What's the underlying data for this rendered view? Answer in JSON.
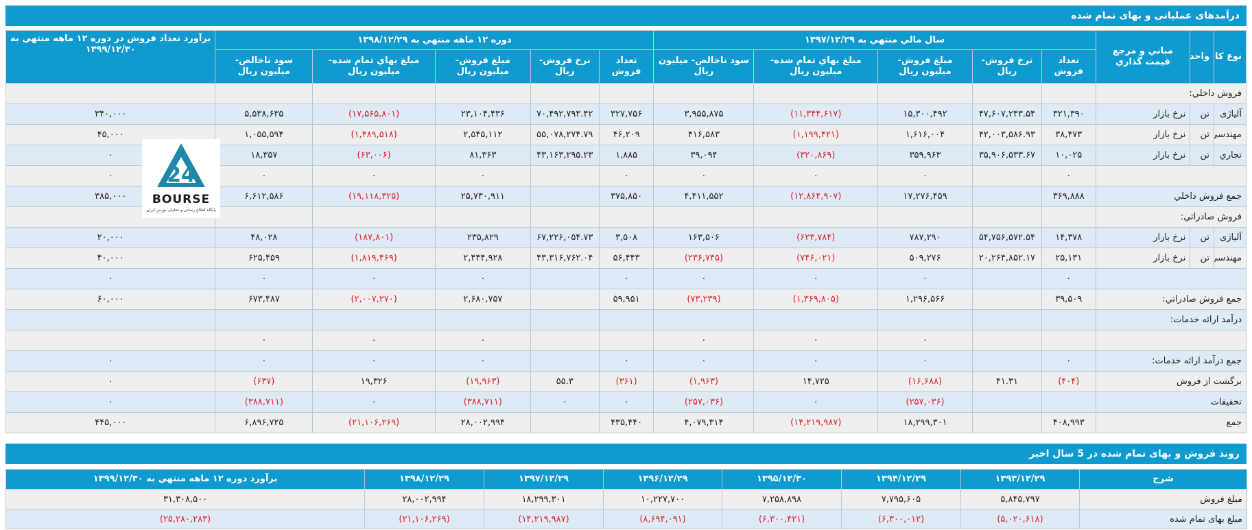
{
  "section1": {
    "title": "درآمدهای عملیاتی و بهای تمام شده"
  },
  "main_headers": {
    "item_type": "نوع کالا",
    "unit": "واحد",
    "pricing_basis": "مباني و مرجع قيمت گذاري",
    "fy1397": "سال مالي منتهي به ۱۳۹۷/۱۲/۲۹",
    "fy1398": "دوره ۱۲ ماهه منتهي به ۱۳۹۸/۱۲/۲۹",
    "estimate": "برآورد تعداد فروش در دوره ۱۲ ماهه منتهي به ۱۳۹۹/۱۲/۳۰",
    "qty": "تعداد فروش",
    "rate": "نرخ فروش- ريال",
    "sales": "مبلغ فروش- میلیون ريال",
    "cost": "مبلغ بهاي تمام شده- میلیون ريال",
    "gross": "سود ناخالص- میلیون ريال"
  },
  "rows": [
    {
      "name": "فروش داخلي:",
      "unit": "",
      "basis": "",
      "v": [
        "",
        "",
        "",
        "",
        "",
        "",
        "",
        "",
        "",
        "",
        ""
      ]
    },
    {
      "name": "آلیاژی",
      "unit": "تن",
      "basis": "نرخ بازار",
      "v": [
        "۳۲۱,۳۹۰",
        "۴۷,۶۰۷,۲۴۳.۵۴",
        "۱۵,۳۰۰,۴۹۲",
        "(۱۱,۳۴۴,۶۱۷)",
        "۳,۹۵۵,۸۷۵",
        "۳۲۷,۷۵۶",
        "۷۰,۴۹۲,۷۹۳.۴۲",
        "۲۳,۱۰۴,۴۳۶",
        "(۱۷,۵۶۵,۸۰۱)",
        "۵,۵۳۸,۶۳۵",
        "۳۴۰,۰۰۰"
      ]
    },
    {
      "name": "مهندسي",
      "unit": "تن",
      "basis": "نرخ بازار",
      "v": [
        "۳۸,۴۷۳",
        "۴۲,۰۰۳,۵۸۶.۹۳",
        "۱,۶۱۶,۰۰۴",
        "(۱,۱۹۹,۴۲۱)",
        "۴۱۶,۵۸۳",
        "۴۶,۲۰۹",
        "۵۵,۰۷۸,۲۷۴.۷۹",
        "۲,۵۴۵,۱۱۲",
        "(۱,۴۸۹,۵۱۸)",
        "۱,۰۵۵,۵۹۴",
        "۴۵,۰۰۰"
      ]
    },
    {
      "name": "تجاري",
      "unit": "تن",
      "basis": "نرخ بازار",
      "v": [
        "۱۰,۰۲۵",
        "۳۵,۹۰۶,۵۳۳.۶۷",
        "۳۵۹,۹۶۳",
        "(۳۲۰,۸۶۹)",
        "۳۹,۰۹۴",
        "۱,۸۸۵",
        "۴۳,۱۶۳,۲۹۵.۲۳",
        "۸۱,۳۶۳",
        "(۶۳,۰۰۶)",
        "۱۸,۳۵۷",
        "۰"
      ]
    },
    {
      "name": "",
      "unit": "",
      "basis": "",
      "v": [
        "۰",
        "",
        "۰",
        "۰",
        "۰",
        "۰",
        "",
        "۰",
        "۰",
        "۰",
        "۰"
      ]
    },
    {
      "name": "جمع فروش داخلي",
      "unit": "",
      "basis": "",
      "v": [
        "۳۶۹,۸۸۸",
        "",
        "۱۷,۲۷۶,۴۵۹",
        "(۱۲,۸۶۴,۹۰۷)",
        "۴,۴۱۱,۵۵۲",
        "۳۷۵,۸۵۰",
        "",
        "۲۵,۷۳۰,۹۱۱",
        "(۱۹,۱۱۸,۳۲۵)",
        "۶,۶۱۲,۵۸۶",
        "۳۸۵,۰۰۰"
      ]
    },
    {
      "name": "فروش صادراتي:",
      "unit": "",
      "basis": "",
      "v": [
        "",
        "",
        "",
        "",
        "",
        "",
        "",
        "",
        "",
        "",
        ""
      ]
    },
    {
      "name": "آلیاژی",
      "unit": "تن",
      "basis": "نرخ بازار",
      "v": [
        "۱۴,۳۷۸",
        "۵۴,۷۵۶,۵۷۲.۵۴",
        "۷۸۷,۲۹۰",
        "(۶۲۳,۷۸۴)",
        "۱۶۳,۵۰۶",
        "۳,۵۰۸",
        "۶۷,۲۲۶,۰۵۴.۷۳",
        "۲۳۵,۸۲۹",
        "(۱۸۷,۸۰۱)",
        "۴۸,۰۲۸",
        "۲۰,۰۰۰"
      ]
    },
    {
      "name": "مهندسي",
      "unit": "تن",
      "basis": "نرخ بازار",
      "v": [
        "۲۵,۱۳۱",
        "۲۰,۲۶۴,۸۵۲.۱۷",
        "۵۰۹,۲۷۶",
        "(۷۴۶,۰۲۱)",
        "(۲۳۶,۷۴۵)",
        "۵۶,۴۴۳",
        "۴۳,۳۱۶,۷۶۲.۰۴",
        "۲,۴۴۴,۹۲۸",
        "(۱,۸۱۹,۴۶۹)",
        "۶۲۵,۴۵۹",
        "۴۰,۰۰۰"
      ]
    },
    {
      "name": "",
      "unit": "",
      "basis": "",
      "v": [
        "۰",
        "",
        "۰",
        "۰",
        "۰",
        "۰",
        "",
        "۰",
        "۰",
        "۰",
        "۰"
      ]
    },
    {
      "name": "جمع فروش صادراتي:",
      "unit": "",
      "basis": "",
      "v": [
        "۳۹,۵۰۹",
        "",
        "۱,۲۹۶,۵۶۶",
        "(۱,۳۶۹,۸۰۵)",
        "(۷۳,۲۳۹)",
        "۵۹,۹۵۱",
        "",
        "۲,۶۸۰,۷۵۷",
        "(۲,۰۰۷,۲۷۰)",
        "۶۷۳,۴۸۷",
        "۶۰,۰۰۰"
      ]
    },
    {
      "name": "درآمد ارائه خدمات:",
      "unit": "",
      "basis": "",
      "v": [
        "",
        "",
        "",
        "",
        "",
        "",
        "",
        "",
        "",
        "",
        ""
      ]
    },
    {
      "name": "",
      "unit": "",
      "basis": "",
      "v": [
        "",
        "",
        "۰",
        "۰",
        "۰",
        "",
        "",
        "۰",
        "۰",
        "۰",
        ""
      ]
    },
    {
      "name": "جمع درآمد ارائه خدمات:",
      "unit": "",
      "basis": "",
      "v": [
        "۰",
        "",
        "۰",
        "۰",
        "۰",
        "۰",
        "",
        "۰",
        "۰",
        "۰",
        "۰"
      ]
    },
    {
      "name": "برگشت از فروش",
      "unit": "",
      "basis": "",
      "v": [
        "(۴۰۴)",
        "۴۱.۳۱",
        "(۱۶,۶۸۸)",
        "۱۴,۷۲۵",
        "(۱,۹۶۳)",
        "(۳۶۱)",
        "۵۵.۳",
        "(۱۹,۹۶۳)",
        "۱۹,۳۲۶",
        "(۶۳۷)",
        "۰"
      ]
    },
    {
      "name": "تخفیفات",
      "unit": "",
      "basis": "",
      "v": [
        "",
        "",
        "(۲۵۷,۰۳۶)",
        "۰",
        "(۲۵۷,۰۳۶)",
        "۰",
        "۰",
        "(۳۸۸,۷۱۱)",
        "۰",
        "(۳۸۸,۷۱۱)",
        "۰"
      ]
    },
    {
      "name": "جمع",
      "unit": "",
      "basis": "",
      "v": [
        "۴۰۸,۹۹۳",
        "",
        "۱۸,۲۹۹,۳۰۱",
        "(۱۴,۲۱۹,۹۸۷)",
        "۴,۰۷۹,۳۱۴",
        "۴۳۵,۴۴۰",
        "",
        "۲۸,۰۰۲,۹۹۴",
        "(۲۱,۱۰۶,۲۶۹)",
        "۶,۸۹۶,۷۲۵",
        "۴۴۵,۰۰۰"
      ]
    }
  ],
  "logo": {
    "brand": "BOURSE",
    "numeral": "24",
    "tagline": "پایگاه اطلاع رسانی و تحلیلی بورس ایران",
    "colors": {
      "teal": "#1e88a8",
      "dark": "#1c1c1c"
    }
  },
  "section2": {
    "title": "روند فروش و بهای تمام شده در 5 سال اخیر"
  },
  "trend": {
    "headers": [
      "شرح",
      "۱۳۹۳/۱۲/۲۹",
      "۱۳۹۴/۱۲/۲۹",
      "۱۳۹۵/۱۲/۳۰",
      "۱۳۹۶/۱۲/۲۹",
      "۱۳۹۷/۱۲/۲۹",
      "۱۳۹۸/۱۲/۲۹",
      "برآورد دوره ۱۲ ماهه منتهي به ۱۳۹۹/۱۲/۳۰"
    ],
    "rows": [
      {
        "label": "مبلغ فروش",
        "v": [
          "۵,۸۴۵,۷۹۷",
          "۷,۷۹۵,۶۰۵",
          "۷,۲۵۸,۸۹۸",
          "۱۰,۲۲۷,۷۰۰",
          "۱۸,۲۹۹,۳۰۱",
          "۲۸,۰۰۲,۹۹۴",
          "۳۱,۳۰۸,۵۰۰"
        ]
      },
      {
        "label": "مبلغ بهای تمام شده",
        "v": [
          "(۵,۰۲۰,۶۱۸)",
          "(۶,۳۰۰,۰۱۲)",
          "(۶,۳۰۰,۴۲۱)",
          "(۸,۶۹۴,۰۹۱)",
          "(۱۴,۲۱۹,۹۸۷)",
          "(۲۱,۱۰۶,۲۶۹)",
          "(۲۵,۲۸۰,۲۸۳)"
        ]
      }
    ]
  }
}
